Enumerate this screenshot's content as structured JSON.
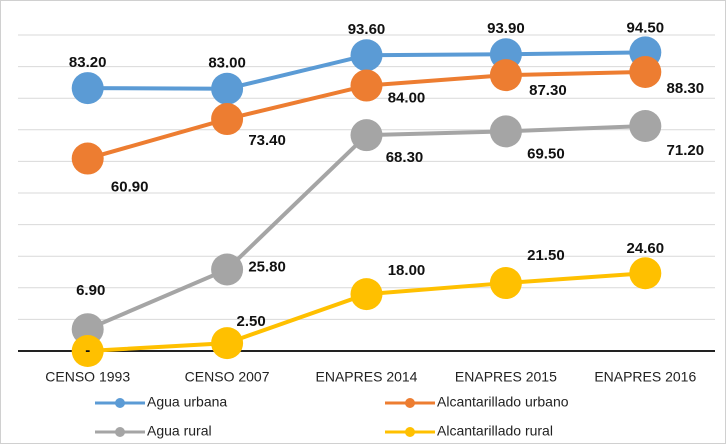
{
  "chart_data": {
    "type": "line",
    "categories": [
      "CENSO 1993",
      "CENSO 2007",
      "ENAPRES  2014",
      "ENAPRES 2015",
      "ENAPRES 2016"
    ],
    "series": [
      {
        "name": "Agua urbana",
        "color": "#5b9bd5",
        "values": [
          83.2,
          83.0,
          93.6,
          93.9,
          94.5
        ],
        "value_labels": [
          "83.20",
          "83.00",
          "93.60",
          "93.90",
          "94.50"
        ]
      },
      {
        "name": "Alcantarillado urbano",
        "color": "#ed7d31",
        "values": [
          60.9,
          73.4,
          84.0,
          87.3,
          88.3
        ],
        "value_labels": [
          "60.90",
          "73.40",
          "84.00",
          "87.30",
          "88.30"
        ]
      },
      {
        "name": "Agua rural",
        "color": "#a5a5a5",
        "values": [
          6.9,
          25.8,
          68.3,
          69.5,
          71.2
        ],
        "value_labels": [
          "6.90",
          "25.80",
          "68.30",
          "69.50",
          "71.20"
        ]
      },
      {
        "name": "Alcantarillado rural",
        "color": "#ffc000",
        "values": [
          0,
          2.5,
          18.0,
          21.5,
          24.6
        ],
        "value_labels": [
          "-",
          "2.50",
          "18.00",
          "21.50",
          "24.60"
        ]
      }
    ],
    "ylim": [
      0,
      100
    ],
    "yticks": [
      0,
      10,
      20,
      30,
      40,
      50,
      60,
      70,
      80,
      90,
      100
    ],
    "grid": true
  }
}
